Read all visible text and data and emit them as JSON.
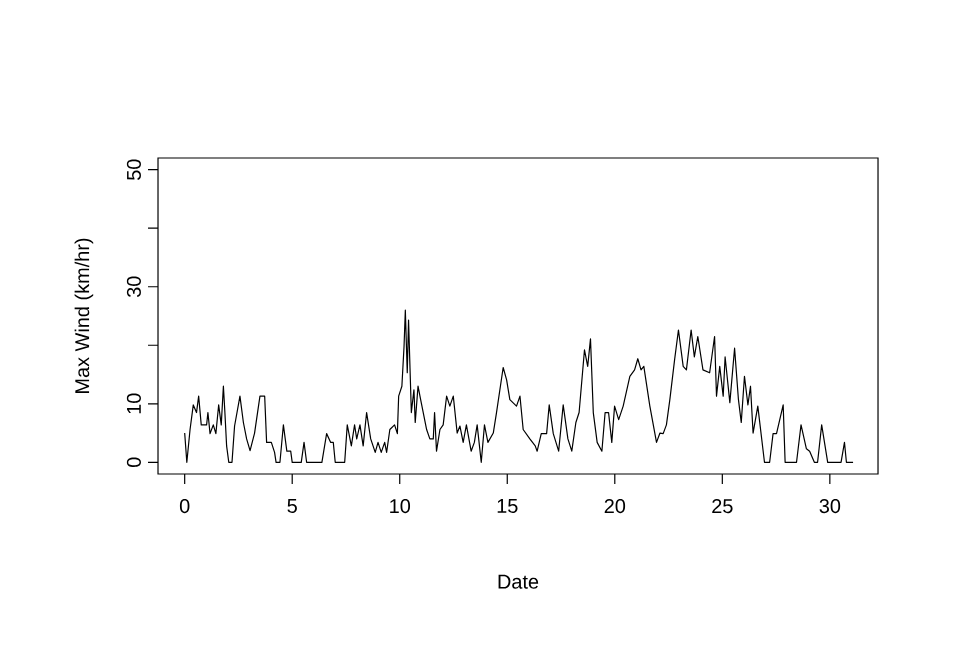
{
  "chart_data": {
    "type": "line",
    "xlabel": "Date",
    "ylabel": "Max Wind (km/hr)",
    "xlim": [
      -1.24,
      32.24
    ],
    "ylim": [
      -2,
      52
    ],
    "xticks": [
      0,
      5,
      10,
      15,
      20,
      25,
      30
    ],
    "yticks": [
      0,
      10,
      {
        "value": 20,
        "label": null
      },
      30,
      {
        "value": 40,
        "label": null
      },
      50
    ],
    "marker": "none",
    "series": [
      {
        "color": "#000000",
        "x": [
          0,
          0.1,
          0.25,
          0.4,
          0.55,
          0.65,
          0.77,
          1.02,
          1.08,
          1.18,
          1.33,
          1.45,
          1.58,
          1.7,
          1.8,
          1.87,
          1.95,
          2.05,
          2.2,
          2.32,
          2.57,
          2.73,
          2.88,
          3.04,
          3.25,
          3.5,
          3.72,
          3.81,
          4.03,
          4.18,
          4.25,
          4.43,
          4.59,
          4.75,
          4.93,
          5.0,
          5.42,
          5.55,
          5.67,
          6.38,
          6.6,
          6.79,
          6.91,
          7.0,
          7.44,
          7.56,
          7.75,
          7.9,
          8.0,
          8.15,
          8.3,
          8.46,
          8.65,
          8.86,
          8.99,
          9.14,
          9.3,
          9.39,
          9.54,
          9.76,
          9.89,
          9.95,
          10.1,
          10.2,
          10.26,
          10.35,
          10.41,
          10.54,
          10.66,
          10.72,
          10.85,
          11.0,
          11.25,
          11.4,
          11.56,
          11.62,
          11.71,
          11.87,
          12.02,
          12.18,
          12.33,
          12.49,
          12.67,
          12.8,
          12.95,
          13.1,
          13.32,
          13.47,
          13.6,
          13.79,
          13.94,
          14.1,
          14.35,
          14.5,
          14.81,
          14.97,
          15.12,
          15.43,
          15.59,
          15.74,
          16.05,
          16.3,
          16.39,
          16.58,
          16.83,
          16.95,
          17.14,
          17.39,
          17.6,
          17.82,
          18.0,
          18.19,
          18.34,
          18.59,
          18.74,
          18.87,
          19.0,
          19.18,
          19.4,
          19.55,
          19.71,
          19.86,
          19.99,
          20.18,
          20.39,
          20.7,
          20.92,
          21.07,
          21.22,
          21.35,
          21.63,
          21.94,
          22.1,
          22.25,
          22.4,
          22.56,
          22.78,
          22.96,
          23.18,
          23.33,
          23.55,
          23.7,
          23.86,
          24.1,
          24.41,
          24.64,
          24.73,
          24.88,
          25.04,
          25.13,
          25.35,
          25.57,
          25.75,
          25.88,
          26.03,
          26.19,
          26.31,
          26.43,
          26.65,
          26.96,
          27.2,
          27.36,
          27.52,
          27.83,
          27.92,
          28.45,
          28.66,
          28.91,
          29.06,
          29.28,
          29.43,
          29.62,
          29.9,
          30.52,
          30.68,
          30.77,
          31.08
        ],
        "values": [
          5,
          0,
          5.6,
          9.8,
          8.5,
          11.3,
          6.4,
          6.4,
          8.5,
          4.9,
          6.4,
          4.9,
          9.8,
          6.4,
          13,
          8.5,
          2.8,
          0,
          0,
          6.2,
          11.3,
          6.8,
          4,
          2,
          5,
          11.3,
          11.3,
          3.4,
          3.4,
          1.7,
          0,
          0,
          6.4,
          1.9,
          1.9,
          0,
          0,
          3.4,
          0,
          0,
          4.9,
          3.4,
          3.4,
          0,
          0,
          6.4,
          2.8,
          6.4,
          4,
          6.4,
          2.8,
          8.5,
          4,
          1.7,
          3.4,
          1.7,
          3.4,
          1.7,
          5.6,
          6.4,
          4.9,
          11.3,
          13,
          19.8,
          26,
          15.3,
          24.3,
          8.5,
          12.4,
          6.8,
          13,
          10.2,
          5.6,
          4,
          4,
          8.5,
          1.9,
          5.6,
          6.4,
          11.3,
          9.6,
          11.3,
          5,
          6.2,
          3.4,
          6.4,
          1.9,
          3.4,
          6.4,
          0,
          6.4,
          3.4,
          5,
          8.5,
          16.2,
          14.1,
          10.7,
          9.6,
          11.3,
          5.6,
          4,
          2.8,
          1.9,
          4.9,
          4.9,
          9.8,
          4.9,
          1.9,
          9.8,
          4,
          1.9,
          6.8,
          8.5,
          19.2,
          16.4,
          21.1,
          8.5,
          3.4,
          1.9,
          8.5,
          8.5,
          3.4,
          9.6,
          7.3,
          9.6,
          14.7,
          15.8,
          17.7,
          15.8,
          16.4,
          9.6,
          3.4,
          5,
          4.9,
          6.4,
          10.7,
          17.5,
          22.6,
          16.4,
          15.8,
          22.6,
          18,
          21.5,
          15.8,
          15.3,
          21.5,
          11.3,
          16.4,
          11.3,
          18,
          10.2,
          19.5,
          10.7,
          6.8,
          14.7,
          9.8,
          13,
          5,
          9.6,
          0,
          0,
          4.9,
          4.9,
          9.8,
          0,
          0,
          6.4,
          2.3,
          1.9,
          0,
          0,
          6.4,
          0,
          0,
          3.4,
          0,
          0
        ]
      }
    ]
  }
}
